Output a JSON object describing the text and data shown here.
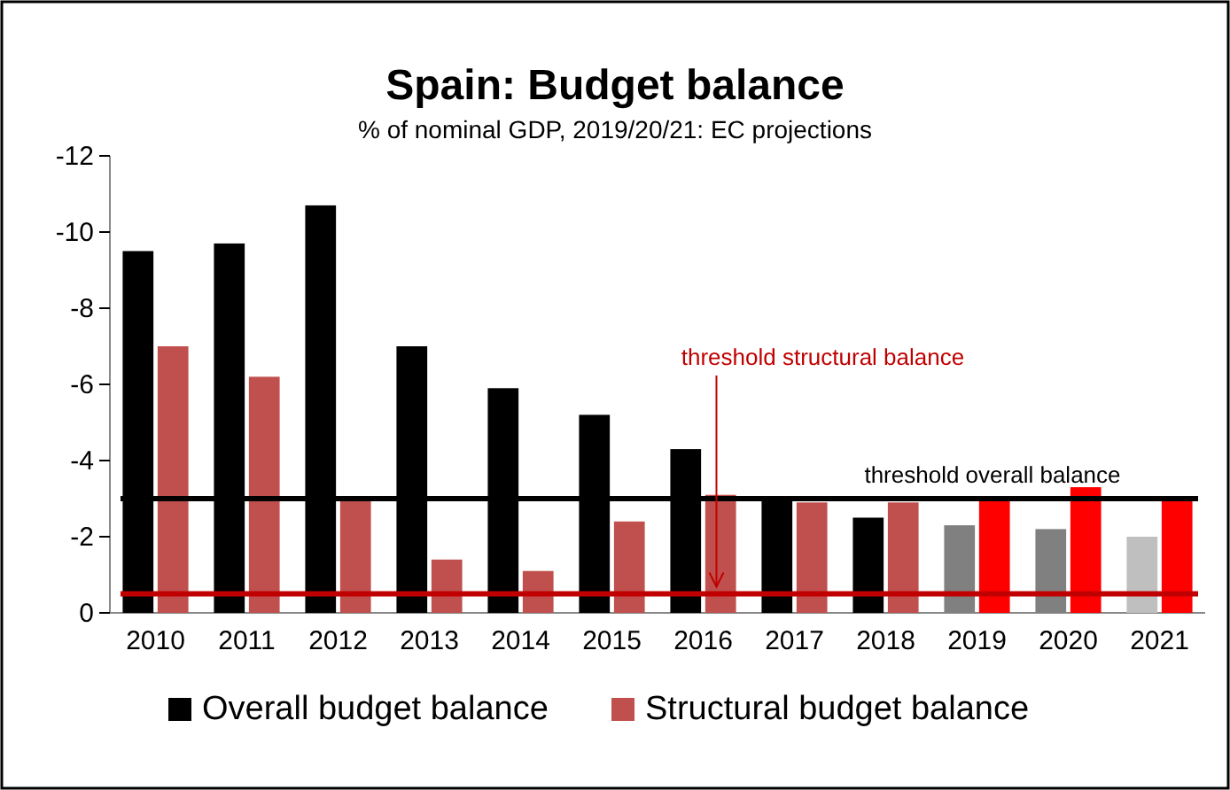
{
  "chart_data": {
    "type": "bar",
    "title": "Spain: Budget balance",
    "subtitle": "% of nominal GDP, 2019/20/21: EC projections",
    "categories": [
      "2010",
      "2011",
      "2012",
      "2013",
      "2014",
      "2015",
      "2016",
      "2017",
      "2018",
      "2019",
      "2020",
      "2021"
    ],
    "series": [
      {
        "name": "Overall budget balance",
        "color": "#000000",
        "colors": [
          "#000000",
          "#000000",
          "#000000",
          "#000000",
          "#000000",
          "#000000",
          "#000000",
          "#000000",
          "#000000",
          "#808080",
          "#808080",
          "#bfbfbf"
        ],
        "values": [
          -9.5,
          -9.7,
          -10.7,
          -7.0,
          -5.9,
          -5.2,
          -4.3,
          -3.0,
          -2.5,
          -2.3,
          -2.2,
          -2.0
        ]
      },
      {
        "name": "Structural budget balance",
        "color": "#c0504d",
        "colors": [
          "#c0504d",
          "#c0504d",
          "#c0504d",
          "#c0504d",
          "#c0504d",
          "#c0504d",
          "#c0504d",
          "#c0504d",
          "#c0504d",
          "#ff0000",
          "#ff0000",
          "#ff0000"
        ],
        "values": [
          -7.0,
          -6.2,
          -3.0,
          -1.4,
          -1.1,
          -2.4,
          -3.1,
          -2.9,
          -2.9,
          -3.0,
          -3.3,
          -3.0
        ]
      }
    ],
    "ylim": [
      0,
      -12
    ],
    "yticks": [
      0,
      -2,
      -4,
      -6,
      -8,
      -10,
      -12
    ],
    "ref_lines": [
      {
        "axis": "y",
        "value": -3,
        "label": "threshold overall balance",
        "color": "#000000"
      },
      {
        "axis": "y",
        "value": -0.5,
        "label": "threshold structural balance",
        "color": "#c00000"
      }
    ],
    "legend": "bottom",
    "grid": false
  }
}
